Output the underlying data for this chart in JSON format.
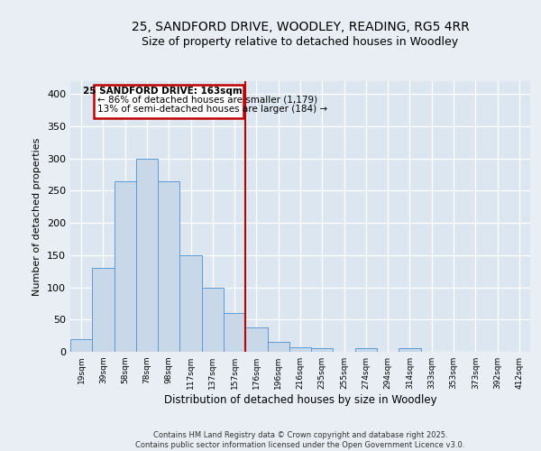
{
  "title_line1": "25, SANDFORD DRIVE, WOODLEY, READING, RG5 4RR",
  "title_line2": "Size of property relative to detached houses in Woodley",
  "xlabel": "Distribution of detached houses by size in Woodley",
  "ylabel": "Number of detached properties",
  "bar_labels": [
    "19sqm",
    "39sqm",
    "58sqm",
    "78sqm",
    "98sqm",
    "117sqm",
    "137sqm",
    "157sqm",
    "176sqm",
    "196sqm",
    "216sqm",
    "235sqm",
    "255sqm",
    "274sqm",
    "294sqm",
    "314sqm",
    "333sqm",
    "353sqm",
    "373sqm",
    "392sqm",
    "412sqm"
  ],
  "bar_heights": [
    20,
    130,
    265,
    300,
    265,
    150,
    100,
    60,
    38,
    15,
    7,
    5,
    0,
    5,
    0,
    5,
    0,
    0,
    0,
    0,
    0
  ],
  "bar_color": "#c8d8e8",
  "bar_edge_color": "#5b9bd5",
  "vline_color": "#c00000",
  "annotation_title": "25 SANDFORD DRIVE: 163sqm",
  "annotation_line2": "← 86% of detached houses are smaller (1,179)",
  "annotation_line3": "13% of semi-detached houses are larger (184) →",
  "annotation_box_color": "#c00000",
  "ylim": [
    0,
    420
  ],
  "yticks": [
    0,
    50,
    100,
    150,
    200,
    250,
    300,
    350,
    400
  ],
  "background_color": "#dce6f0",
  "grid_color": "#ffffff",
  "fig_facecolor": "#e8eef4",
  "footer_line1": "Contains HM Land Registry data © Crown copyright and database right 2025.",
  "footer_line2": "Contains public sector information licensed under the Open Government Licence v3.0."
}
